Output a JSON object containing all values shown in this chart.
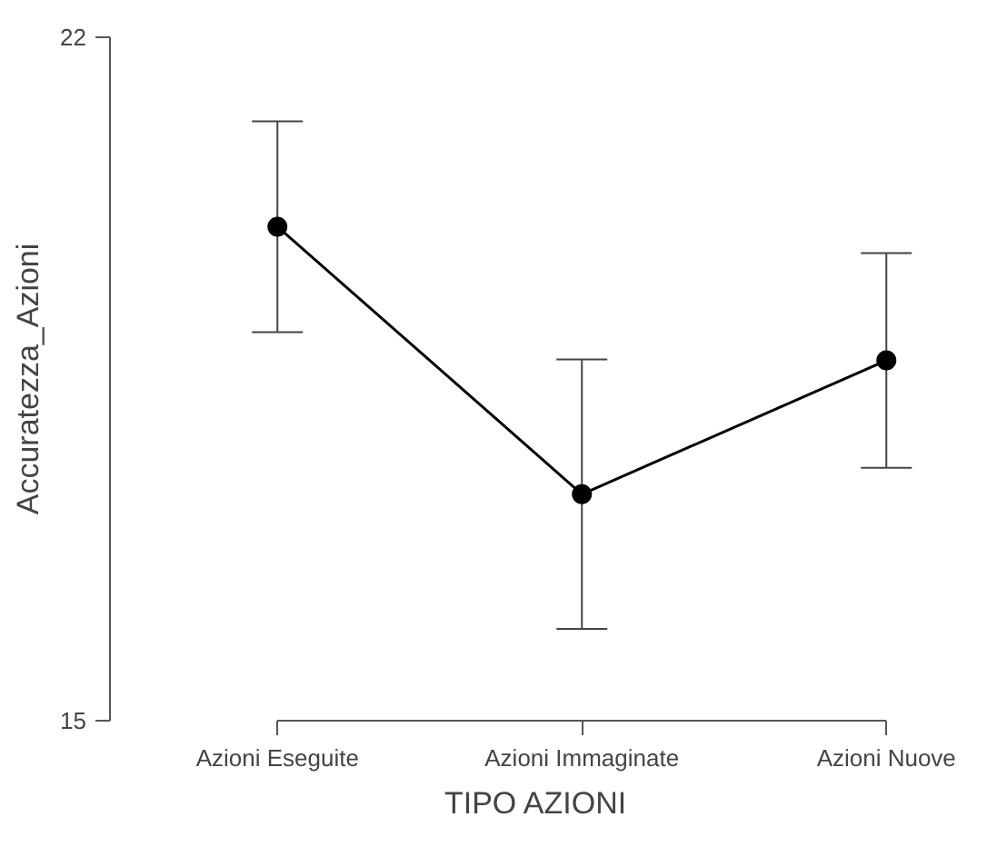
{
  "chart_data": {
    "type": "line",
    "xlabel": "TIPO AZIONI",
    "ylabel": "Accuratezza_Azioni",
    "categories": [
      "Azioni Eseguite",
      "Azioni Immaginate",
      "Azioni Nuove"
    ],
    "values": [
      20.06,
      17.32,
      18.69
    ],
    "errors": [
      1.08,
      1.38,
      1.1
    ],
    "color": "#000000",
    "marker": "circle",
    "line_style": "solid",
    "ylim": [
      15,
      22
    ],
    "yticks": [
      15,
      22
    ],
    "grid": false
  }
}
